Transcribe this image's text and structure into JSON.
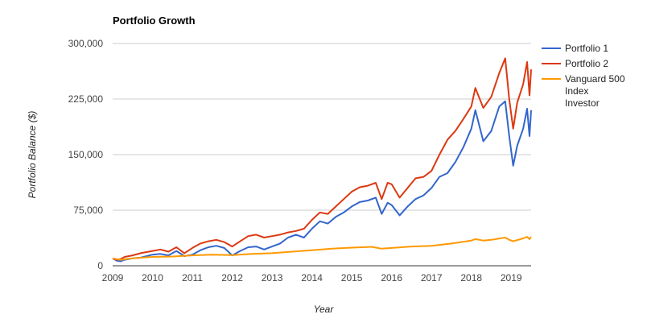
{
  "colors": {
    "series_1": "#3366cc",
    "series_2": "#dc3912",
    "series_3": "#ff9900",
    "gridline": "#cccccc",
    "baseline": "#333333",
    "background": "#ffffff"
  },
  "chart_data": {
    "type": "line",
    "title": "Portfolio Growth",
    "xlabel": "Year",
    "ylabel": "Portfolio Balance ($)",
    "xlim": [
      2009,
      2019.5
    ],
    "ylim": [
      0,
      300000
    ],
    "x_ticks": [
      2009,
      2010,
      2011,
      2012,
      2013,
      2014,
      2015,
      2016,
      2017,
      2018,
      2019
    ],
    "x_tick_labels": [
      "2009",
      "2010",
      "2011",
      "2012",
      "2013",
      "2014",
      "2015",
      "2016",
      "2017",
      "2018",
      "2019"
    ],
    "y_ticks": [
      0,
      75000,
      150000,
      225000,
      300000
    ],
    "y_tick_labels": [
      "0",
      "75,000",
      "150,000",
      "225,000",
      "300,000"
    ],
    "grid": true,
    "legend_position": "right",
    "series": [
      {
        "name": "Portfolio 1",
        "points": [
          [
            2009.0,
            10000
          ],
          [
            2009.1,
            7000
          ],
          [
            2009.2,
            6000
          ],
          [
            2009.3,
            8000
          ],
          [
            2009.5,
            10000
          ],
          [
            2009.7,
            11000
          ],
          [
            2010.0,
            15000
          ],
          [
            2010.2,
            16000
          ],
          [
            2010.4,
            14000
          ],
          [
            2010.6,
            20000
          ],
          [
            2010.8,
            13000
          ],
          [
            2011.0,
            15000
          ],
          [
            2011.2,
            21000
          ],
          [
            2011.4,
            25000
          ],
          [
            2011.6,
            27000
          ],
          [
            2011.8,
            24000
          ],
          [
            2012.0,
            14000
          ],
          [
            2012.2,
            20000
          ],
          [
            2012.4,
            25000
          ],
          [
            2012.6,
            26000
          ],
          [
            2012.8,
            22000
          ],
          [
            2013.0,
            26000
          ],
          [
            2013.2,
            30000
          ],
          [
            2013.4,
            38000
          ],
          [
            2013.6,
            42000
          ],
          [
            2013.8,
            38000
          ],
          [
            2014.0,
            50000
          ],
          [
            2014.2,
            60000
          ],
          [
            2014.4,
            57000
          ],
          [
            2014.6,
            66000
          ],
          [
            2014.8,
            72000
          ],
          [
            2015.0,
            80000
          ],
          [
            2015.2,
            86000
          ],
          [
            2015.4,
            88000
          ],
          [
            2015.6,
            92000
          ],
          [
            2015.75,
            70000
          ],
          [
            2015.9,
            85000
          ],
          [
            2016.0,
            82000
          ],
          [
            2016.2,
            68000
          ],
          [
            2016.4,
            80000
          ],
          [
            2016.6,
            90000
          ],
          [
            2016.8,
            95000
          ],
          [
            2017.0,
            105000
          ],
          [
            2017.2,
            120000
          ],
          [
            2017.4,
            125000
          ],
          [
            2017.6,
            140000
          ],
          [
            2017.8,
            160000
          ],
          [
            2018.0,
            185000
          ],
          [
            2018.1,
            210000
          ],
          [
            2018.3,
            168000
          ],
          [
            2018.5,
            182000
          ],
          [
            2018.7,
            215000
          ],
          [
            2018.85,
            222000
          ],
          [
            2018.95,
            175000
          ],
          [
            2019.05,
            135000
          ],
          [
            2019.15,
            162000
          ],
          [
            2019.3,
            185000
          ],
          [
            2019.4,
            212000
          ],
          [
            2019.46,
            175000
          ],
          [
            2019.5,
            210000
          ]
        ]
      },
      {
        "name": "Portfolio 2",
        "points": [
          [
            2009.0,
            10000
          ],
          [
            2009.1,
            8000
          ],
          [
            2009.2,
            9000
          ],
          [
            2009.3,
            12000
          ],
          [
            2009.5,
            14000
          ],
          [
            2009.7,
            17000
          ],
          [
            2010.0,
            20000
          ],
          [
            2010.2,
            22000
          ],
          [
            2010.4,
            19000
          ],
          [
            2010.6,
            25000
          ],
          [
            2010.8,
            17000
          ],
          [
            2011.0,
            24000
          ],
          [
            2011.2,
            30000
          ],
          [
            2011.4,
            33000
          ],
          [
            2011.6,
            35000
          ],
          [
            2011.8,
            32000
          ],
          [
            2012.0,
            26000
          ],
          [
            2012.2,
            33000
          ],
          [
            2012.4,
            40000
          ],
          [
            2012.6,
            42000
          ],
          [
            2012.8,
            38000
          ],
          [
            2013.0,
            40000
          ],
          [
            2013.2,
            42000
          ],
          [
            2013.4,
            45000
          ],
          [
            2013.6,
            47000
          ],
          [
            2013.8,
            50000
          ],
          [
            2014.0,
            62000
          ],
          [
            2014.2,
            72000
          ],
          [
            2014.4,
            70000
          ],
          [
            2014.6,
            80000
          ],
          [
            2014.8,
            90000
          ],
          [
            2015.0,
            100000
          ],
          [
            2015.2,
            106000
          ],
          [
            2015.4,
            108000
          ],
          [
            2015.6,
            112000
          ],
          [
            2015.75,
            90000
          ],
          [
            2015.9,
            112000
          ],
          [
            2016.0,
            110000
          ],
          [
            2016.2,
            92000
          ],
          [
            2016.4,
            105000
          ],
          [
            2016.6,
            118000
          ],
          [
            2016.8,
            120000
          ],
          [
            2017.0,
            128000
          ],
          [
            2017.2,
            150000
          ],
          [
            2017.4,
            170000
          ],
          [
            2017.6,
            182000
          ],
          [
            2017.8,
            198000
          ],
          [
            2018.0,
            215000
          ],
          [
            2018.1,
            240000
          ],
          [
            2018.3,
            213000
          ],
          [
            2018.5,
            228000
          ],
          [
            2018.7,
            260000
          ],
          [
            2018.85,
            280000
          ],
          [
            2018.95,
            225000
          ],
          [
            2019.05,
            185000
          ],
          [
            2019.15,
            220000
          ],
          [
            2019.3,
            245000
          ],
          [
            2019.4,
            275000
          ],
          [
            2019.46,
            230000
          ],
          [
            2019.5,
            265000
          ]
        ]
      },
      {
        "name": "Vanguard 500 Index Investor",
        "points": [
          [
            2009.0,
            10000
          ],
          [
            2009.2,
            8000
          ],
          [
            2009.5,
            10000
          ],
          [
            2010.0,
            12000
          ],
          [
            2010.5,
            12500
          ],
          [
            2011.0,
            14000
          ],
          [
            2011.5,
            15000
          ],
          [
            2012.0,
            14500
          ],
          [
            2012.5,
            16000
          ],
          [
            2013.0,
            17000
          ],
          [
            2013.5,
            19000
          ],
          [
            2014.0,
            21000
          ],
          [
            2014.5,
            23000
          ],
          [
            2015.0,
            24500
          ],
          [
            2015.5,
            25500
          ],
          [
            2015.75,
            23000
          ],
          [
            2016.0,
            24000
          ],
          [
            2016.5,
            26000
          ],
          [
            2017.0,
            27000
          ],
          [
            2017.5,
            30000
          ],
          [
            2018.0,
            34000
          ],
          [
            2018.1,
            36000
          ],
          [
            2018.3,
            34000
          ],
          [
            2018.5,
            35000
          ],
          [
            2018.85,
            38000
          ],
          [
            2018.95,
            35000
          ],
          [
            2019.05,
            33000
          ],
          [
            2019.3,
            37000
          ],
          [
            2019.4,
            39000
          ],
          [
            2019.46,
            36000
          ],
          [
            2019.5,
            39000
          ]
        ]
      }
    ]
  }
}
